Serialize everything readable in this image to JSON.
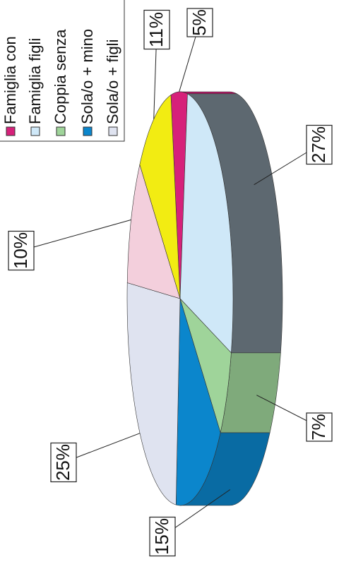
{
  "chart_data": {
    "type": "pie",
    "categories": [
      "Famiglia con",
      "Famiglia figli",
      "Coppia senza",
      "Sola/o + mino",
      "Sola/o + figli",
      null,
      null
    ],
    "values": [
      5,
      27,
      7,
      15,
      25,
      10,
      11
    ],
    "value_labels": [
      "5%",
      "27%",
      "7%",
      "15%",
      "25%",
      "10%",
      "11%"
    ],
    "colors": [
      "#d6217a",
      "#cfe8f8",
      "#9fd49a",
      "#0b86cc",
      "#dfe3f0",
      "#f3cfdc",
      "#f2ec12"
    ],
    "legend": "top-left"
  }
}
